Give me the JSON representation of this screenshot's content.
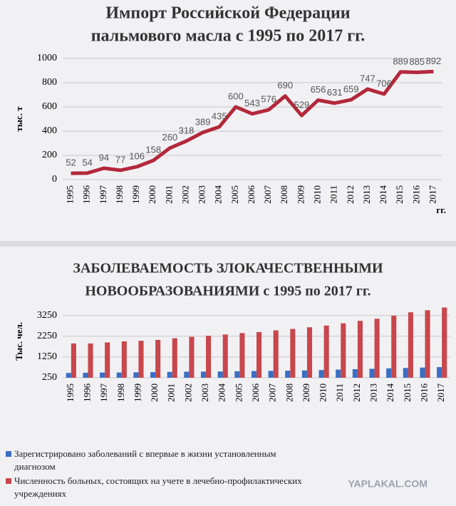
{
  "chart_data": [
    {
      "type": "line",
      "title": [
        "Импорт Российской Федерации",
        "пальмового масла с 1995  по 2017 гг."
      ],
      "y_label": "тыс. т",
      "x_unit": "гг.",
      "categories": [
        "1995",
        "1996",
        "1997",
        "1998",
        "1999",
        "2000",
        "2001",
        "2002",
        "2003",
        "2004",
        "2005",
        "2006",
        "2007",
        "2008",
        "2009",
        "2010",
        "2011",
        "2012",
        "2013",
        "2014",
        "2015",
        "2016",
        "2017"
      ],
      "values": [
        52,
        54,
        94,
        77,
        106,
        158,
        260,
        318,
        389,
        435,
        600,
        543,
        576,
        690,
        529,
        656,
        631,
        659,
        747,
        706,
        889,
        885,
        892
      ],
      "color": "#b3283a",
      "ylim": [
        0,
        1000
      ],
      "yticks": [
        0,
        200,
        400,
        600,
        800,
        1000
      ],
      "grid": true
    },
    {
      "type": "bar",
      "title": [
        "ЗАБОЛЕВАЕМОСТЬ ЗЛОКАЧЕСТВЕННЫМИ",
        "НОВООБРАЗОВАНИЯМИ с 1995 по  2017 гг."
      ],
      "y_label": "Тыс. чел.",
      "categories": [
        "1995",
        "1996",
        "1997",
        "1998",
        "1999",
        "2000",
        "2001",
        "2002",
        "2003",
        "2004",
        "2005",
        "2006",
        "2007",
        "2008",
        "2009",
        "2010",
        "2011",
        "2012",
        "2013",
        "2014",
        "2015",
        "2016",
        "2017"
      ],
      "series": [
        {
          "name": "Зарегистрировано заболеваний  с впервые  в жизни установленным диагнозом",
          "color": "#3a6fc4",
          "values": [
            480,
            490,
            500,
            500,
            510,
            520,
            530,
            540,
            545,
            550,
            560,
            570,
            580,
            590,
            600,
            620,
            640,
            660,
            680,
            700,
            720,
            740,
            760
          ]
        },
        {
          "name": "Численность больных, состоящих на учете  в лечебно-профилактических учреждениях",
          "color": "#c8474c",
          "values": [
            1900,
            1900,
            1950,
            2000,
            2030,
            2070,
            2150,
            2220,
            2270,
            2330,
            2400,
            2450,
            2530,
            2600,
            2680,
            2760,
            2870,
            2990,
            3090,
            3240,
            3400,
            3500,
            3630
          ]
        }
      ],
      "ylim": [
        250,
        3750
      ],
      "yticks": [
        250,
        1250,
        2250,
        3250
      ],
      "grid": true
    }
  ],
  "watermark": "YAPLAKAL.COM"
}
